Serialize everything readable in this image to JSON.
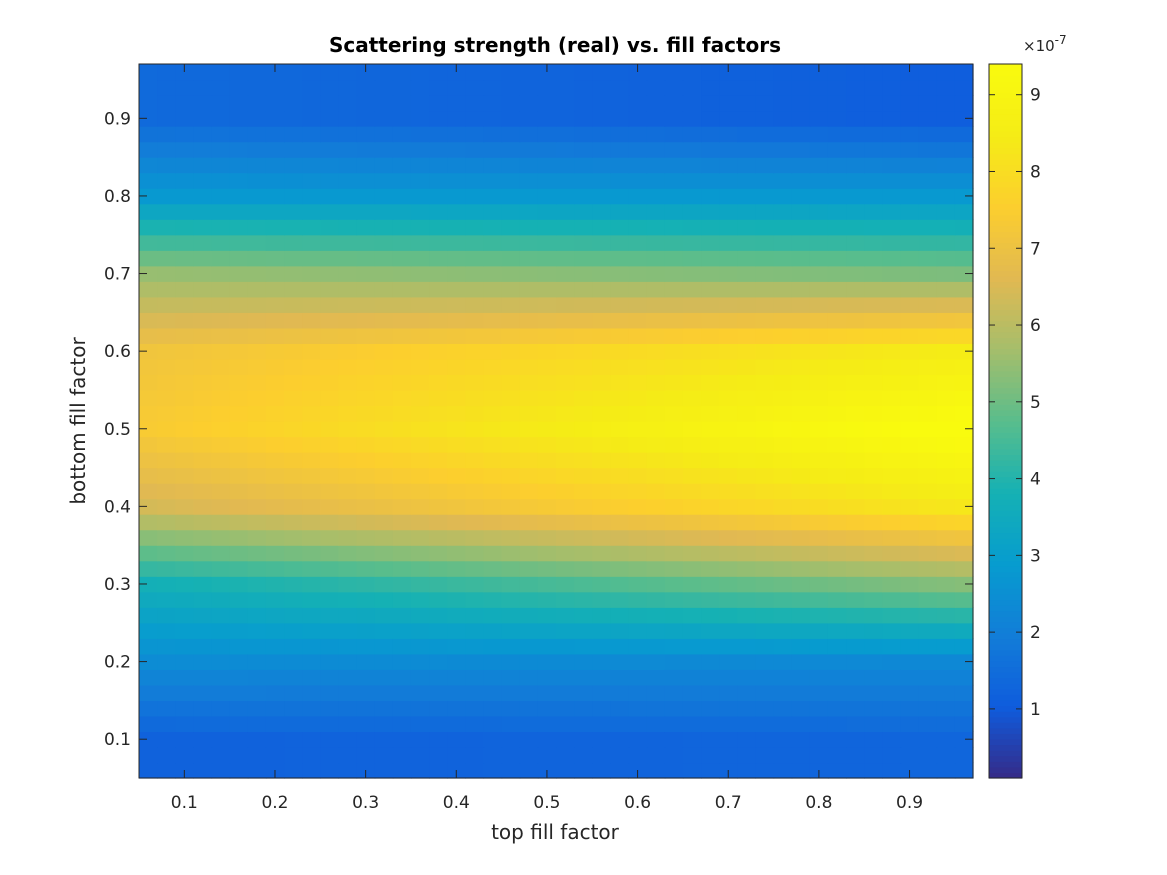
{
  "chart_data": {
    "type": "heatmap",
    "title": "Scattering strength (real) vs. fill factors",
    "xlabel": "top fill factor",
    "ylabel": "bottom fill factor",
    "xlim": [
      0.05,
      0.97
    ],
    "ylim": [
      0.05,
      0.97
    ],
    "x_ticks": [
      0.1,
      0.2,
      0.3,
      0.4,
      0.5,
      0.6,
      0.7,
      0.8,
      0.9
    ],
    "y_ticks": [
      0.1,
      0.2,
      0.3,
      0.4,
      0.5,
      0.6,
      0.7,
      0.8,
      0.9
    ],
    "x_tick_labels": [
      "0.1",
      "0.2",
      "0.3",
      "0.4",
      "0.5",
      "0.6",
      "0.7",
      "0.8",
      "0.9"
    ],
    "y_tick_labels": [
      "0.1",
      "0.2",
      "0.3",
      "0.4",
      "0.5",
      "0.6",
      "0.7",
      "0.8",
      "0.9"
    ],
    "grid": false,
    "colormap": "parula",
    "colorbar": {
      "clim": [
        1e-08,
        9.4e-07
      ],
      "ticks": [
        1,
        2,
        3,
        4,
        5,
        6,
        7,
        8,
        9
      ],
      "tick_labels": [
        "1",
        "2",
        "3",
        "4",
        "5",
        "6",
        "7",
        "8",
        "9"
      ],
      "multiplier": "×10",
      "exponent": "-7",
      "location": "right"
    },
    "x": [
      0.06,
      0.08,
      0.1,
      0.12,
      0.14,
      0.16,
      0.18,
      0.2,
      0.22,
      0.24,
      0.26,
      0.28,
      0.3,
      0.32,
      0.34,
      0.36,
      0.38,
      0.4,
      0.42,
      0.44,
      0.46,
      0.48,
      0.5,
      0.52,
      0.54,
      0.56,
      0.58,
      0.6,
      0.62,
      0.64,
      0.66,
      0.68,
      0.7,
      0.72,
      0.74,
      0.76,
      0.78,
      0.8,
      0.82,
      0.84,
      0.86,
      0.88,
      0.9,
      0.92,
      0.94,
      0.96
    ],
    "y": [
      0.06,
      0.08,
      0.1,
      0.12,
      0.14,
      0.16,
      0.18,
      0.2,
      0.22,
      0.24,
      0.26,
      0.28,
      0.3,
      0.32,
      0.34,
      0.36,
      0.38,
      0.4,
      0.42,
      0.44,
      0.46,
      0.48,
      0.5,
      0.52,
      0.54,
      0.56,
      0.58,
      0.6,
      0.62,
      0.64,
      0.66,
      0.68,
      0.7,
      0.72,
      0.74,
      0.76,
      0.78,
      0.8,
      0.82,
      0.84,
      0.86,
      0.88,
      0.9,
      0.92,
      0.94,
      0.96
    ],
    "values_at_x_0.1": {
      "y": [
        0.1,
        0.2,
        0.3,
        0.4,
        0.5,
        0.6,
        0.7,
        0.8,
        0.9
      ],
      "z": [
        1.2e-07,
        2.4e-07,
        3.8e-07,
        6.5e-07,
        7.5e-07,
        7.2e-07,
        5.5e-07,
        2.8e-07,
        1.4e-07
      ]
    },
    "values_at_x_0.9": {
      "y": [
        0.1,
        0.2,
        0.3,
        0.4,
        0.5,
        0.6,
        0.7,
        0.8,
        0.9
      ],
      "z": [
        1.3e-07,
        2.3e-07,
        5.2e-07,
        8.2e-07,
        9.4e-07,
        8.4e-07,
        5.2e-07,
        2.8e-07,
        1.1e-07
      ]
    },
    "peak": {
      "x": 0.85,
      "y": 0.52,
      "value": 9.4e-07
    }
  }
}
